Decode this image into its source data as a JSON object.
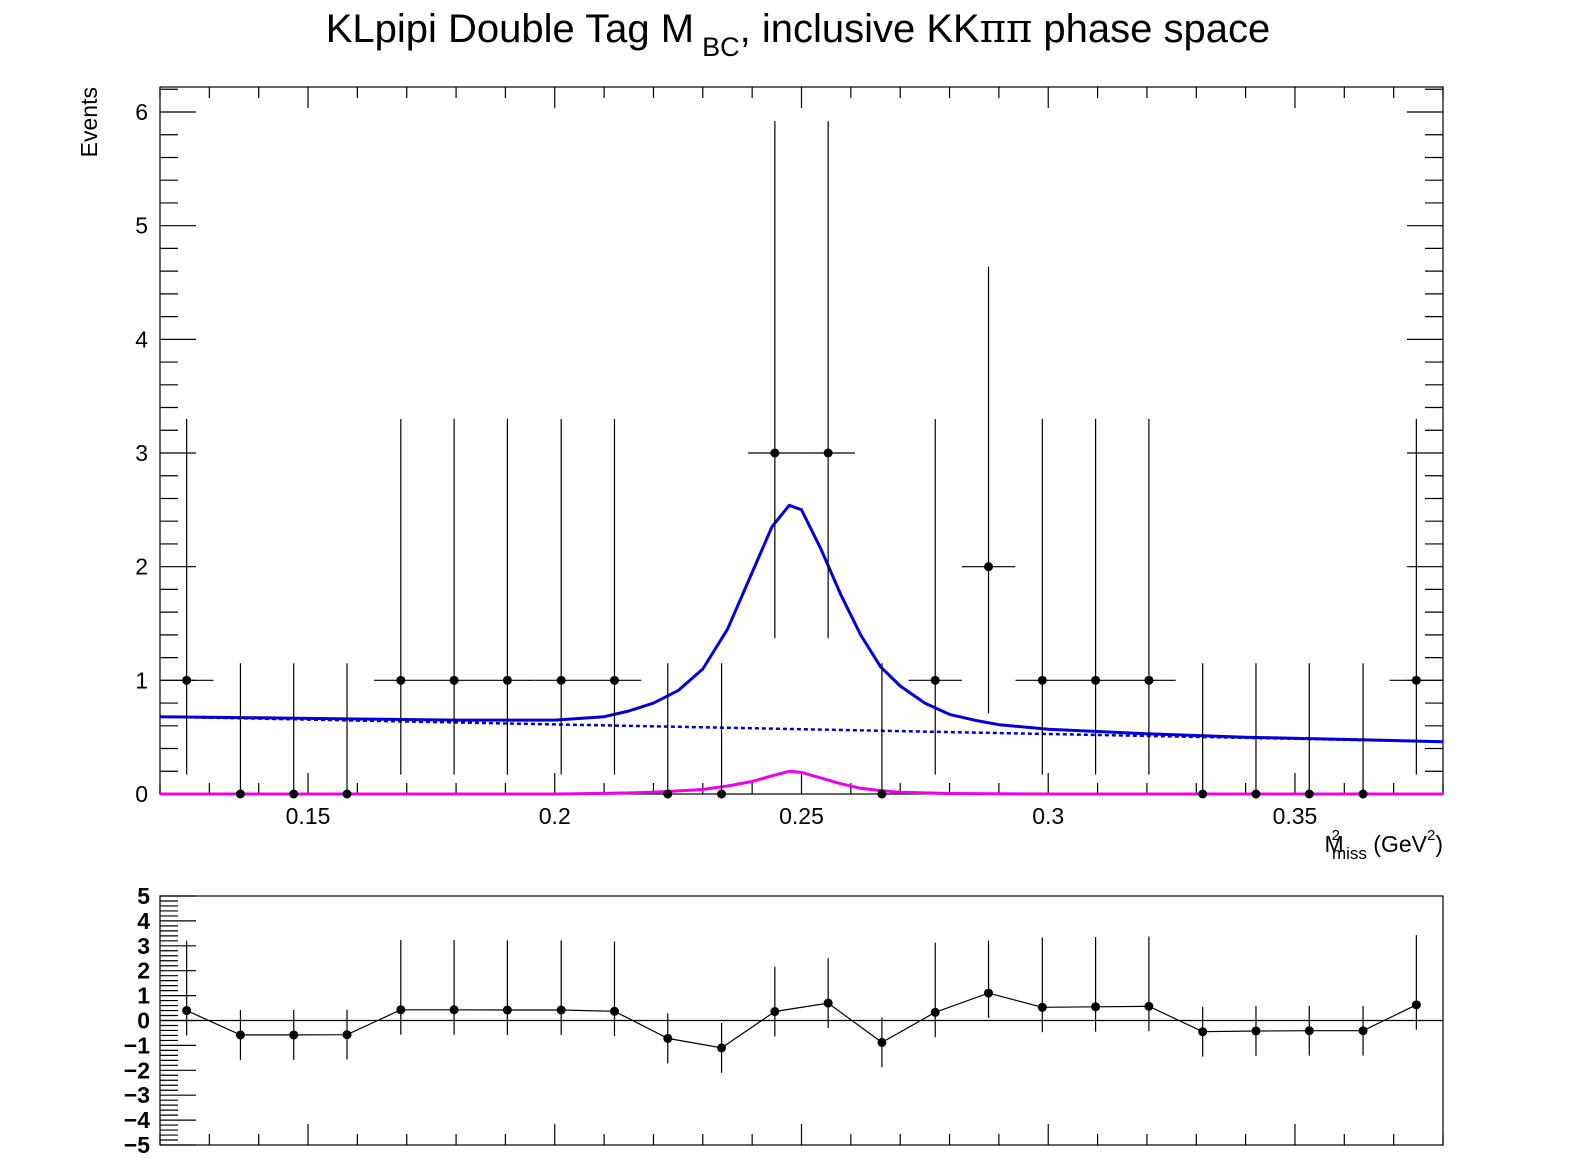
{
  "chart_data": [
    {
      "type": "scatter",
      "title_parts": {
        "main": "KLpipi Double Tag M",
        "sub": "BC",
        "rest": ", inclusive KK",
        "greek": "ππ",
        "end": " phase space"
      },
      "ylabel": "Events",
      "xlabel_parts": {
        "base": "M",
        "sup": "2",
        "sub": "miss",
        "unit": " (GeV",
        "unit_sup": "2",
        "close": ")"
      },
      "xlim": [
        0.12,
        0.38
      ],
      "ylim": [
        0,
        6.22
      ],
      "x_ticks": [
        0.15,
        0.2,
        0.25,
        0.3,
        0.35
      ],
      "x_tick_labels": [
        "0.15",
        "0.2",
        "0.25",
        "0.3",
        "0.35"
      ],
      "y_ticks": [
        0,
        1,
        2,
        3,
        4,
        5,
        6
      ],
      "y_tick_labels": [
        "0",
        "1",
        "2",
        "3",
        "4",
        "5",
        "6"
      ],
      "bin_half_width": 0.00542,
      "x": [
        0.1254,
        0.1363,
        0.1471,
        0.1579,
        0.1688,
        0.1796,
        0.1904,
        0.2013,
        0.2121,
        0.2229,
        0.2338,
        0.2446,
        0.2554,
        0.2663,
        0.2771,
        0.2879,
        0.2988,
        0.3096,
        0.3204,
        0.3313,
        0.3421,
        0.3529,
        0.3638,
        0.3746
      ],
      "y": [
        1,
        0,
        0,
        0,
        1,
        1,
        1,
        1,
        1,
        0,
        0,
        3,
        3,
        0,
        1,
        2,
        1,
        1,
        1,
        0,
        0,
        0,
        0,
        1
      ],
      "y_err_low": [
        0.83,
        0,
        0,
        0,
        0.83,
        0.83,
        0.83,
        0.83,
        0.83,
        0,
        0,
        1.63,
        1.63,
        0,
        0.83,
        1.29,
        0.83,
        0.83,
        0.83,
        0,
        0,
        0,
        0,
        0.83
      ],
      "y_err_high": [
        2.3,
        1.15,
        1.15,
        1.15,
        2.3,
        2.3,
        2.3,
        2.3,
        2.3,
        1.15,
        1.15,
        2.92,
        2.92,
        1.15,
        2.3,
        2.64,
        2.3,
        2.3,
        2.3,
        1.15,
        1.15,
        1.15,
        1.15,
        2.3
      ],
      "curves": {
        "total": {
          "color": "#0000dd",
          "x": [
            0.12,
            0.14,
            0.16,
            0.18,
            0.2,
            0.21,
            0.215,
            0.22,
            0.225,
            0.23,
            0.235,
            0.24,
            0.244,
            0.2475,
            0.25,
            0.254,
            0.258,
            0.262,
            0.266,
            0.27,
            0.275,
            0.28,
            0.285,
            0.29,
            0.3,
            0.32,
            0.34,
            0.36,
            0.38
          ],
          "y": [
            0.68,
            0.67,
            0.66,
            0.65,
            0.65,
            0.68,
            0.73,
            0.8,
            0.91,
            1.1,
            1.45,
            1.95,
            2.35,
            2.54,
            2.5,
            2.15,
            1.75,
            1.4,
            1.12,
            0.95,
            0.8,
            0.7,
            0.65,
            0.61,
            0.57,
            0.53,
            0.5,
            0.48,
            0.46
          ]
        },
        "background": {
          "color": "#0000dd",
          "dashed": true,
          "x": [
            0.12,
            0.38
          ],
          "y": [
            0.68,
            0.46
          ]
        },
        "signal": {
          "color": "#ee00ee",
          "x": [
            0.12,
            0.2,
            0.21,
            0.22,
            0.23,
            0.235,
            0.24,
            0.244,
            0.2475,
            0.25,
            0.254,
            0.258,
            0.262,
            0.266,
            0.27,
            0.28,
            0.3,
            0.38
          ],
          "y": [
            0,
            0,
            0.005,
            0.015,
            0.04,
            0.07,
            0.11,
            0.16,
            0.2,
            0.19,
            0.14,
            0.09,
            0.05,
            0.03,
            0.015,
            0.004,
            0,
            0
          ]
        }
      }
    },
    {
      "type": "scatter",
      "ylim": [
        -5,
        5
      ],
      "y_ticks": [
        -5,
        -4,
        -3,
        -2,
        -1,
        0,
        1,
        2,
        3,
        4,
        5
      ],
      "y_tick_labels": [
        "−5",
        "−4",
        "−3",
        "−2",
        "−1",
        "0",
        "1",
        "2",
        "3",
        "4",
        "5"
      ],
      "x": [
        0.1254,
        0.1363,
        0.1471,
        0.1579,
        0.1688,
        0.1796,
        0.1904,
        0.2013,
        0.2121,
        0.2229,
        0.2338,
        0.2446,
        0.2554,
        0.2663,
        0.2771,
        0.2879,
        0.2988,
        0.3096,
        0.3204,
        0.3313,
        0.3421,
        0.3529,
        0.3638,
        0.3746
      ],
      "y": [
        0.4,
        -0.58,
        -0.58,
        -0.57,
        0.43,
        0.43,
        0.42,
        0.42,
        0.37,
        -0.72,
        -1.1,
        0.36,
        0.7,
        -0.88,
        0.33,
        1.1,
        0.53,
        0.55,
        0.57,
        -0.45,
        -0.42,
        -0.41,
        -0.41,
        0.63
      ],
      "y_err_low": [
        1.0,
        1.0,
        1.0,
        1.0,
        1.0,
        1.0,
        1.0,
        1.0,
        1.0,
        1.0,
        1.0,
        1.0,
        1.0,
        1.0,
        1.0,
        1.0,
        1.0,
        1.0,
        1.0,
        1.0,
        1.0,
        1.0,
        1.0,
        1.0
      ],
      "y_err_high": [
        2.8,
        1.0,
        1.0,
        1.0,
        2.8,
        2.8,
        2.8,
        2.8,
        2.8,
        1.0,
        1.0,
        1.8,
        1.8,
        1.0,
        2.8,
        2.1,
        2.8,
        2.8,
        2.8,
        1.0,
        1.0,
        1.0,
        1.0,
        2.8
      ],
      "reference_line": 0
    }
  ]
}
